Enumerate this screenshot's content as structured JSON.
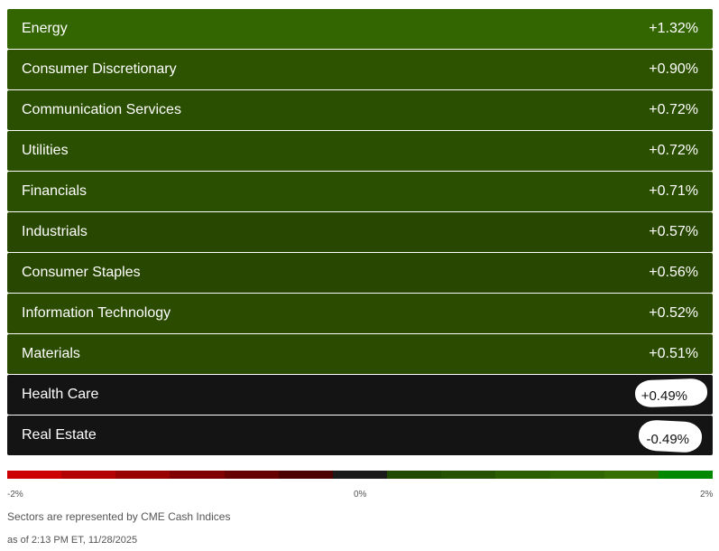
{
  "sectors": [
    {
      "name": "Energy",
      "change": "+1.32%",
      "color": "#336600"
    },
    {
      "name": "Consumer Discretionary",
      "change": "+0.90%",
      "color": "#2d5200"
    },
    {
      "name": "Communication Services",
      "change": "+0.72%",
      "color": "#2b4f00"
    },
    {
      "name": "Utilities",
      "change": "+0.72%",
      "color": "#2b4f00"
    },
    {
      "name": "Financials",
      "change": "+0.71%",
      "color": "#2b4f00"
    },
    {
      "name": "Industrials",
      "change": "+0.57%",
      "color": "#284700"
    },
    {
      "name": "Consumer Staples",
      "change": "+0.56%",
      "color": "#284700"
    },
    {
      "name": "Information Technology",
      "change": "+0.52%",
      "color": "#2a4b00"
    },
    {
      "name": "Materials",
      "change": "+0.51%",
      "color": "#2a4b00"
    },
    {
      "name": "Health Care",
      "change": "+0.49%",
      "color": "#141414"
    },
    {
      "name": "Real Estate",
      "change": "-0.49%",
      "color": "#141414"
    }
  ],
  "scale": {
    "colors": [
      "#cc0000",
      "#b30000",
      "#990000",
      "#800000",
      "#660000",
      "#4d0000",
      "#1a1a1a",
      "#1f4a00",
      "#245200",
      "#2b5e00",
      "#306600",
      "#367000",
      "#008800"
    ],
    "min_label": "-2%",
    "mid_label": "0%",
    "max_label": "2%"
  },
  "footer": {
    "note": "Sectors are represented by CME Cash Indices",
    "timestamp": "as of 2:13 PM ET, 11/28/2025"
  }
}
